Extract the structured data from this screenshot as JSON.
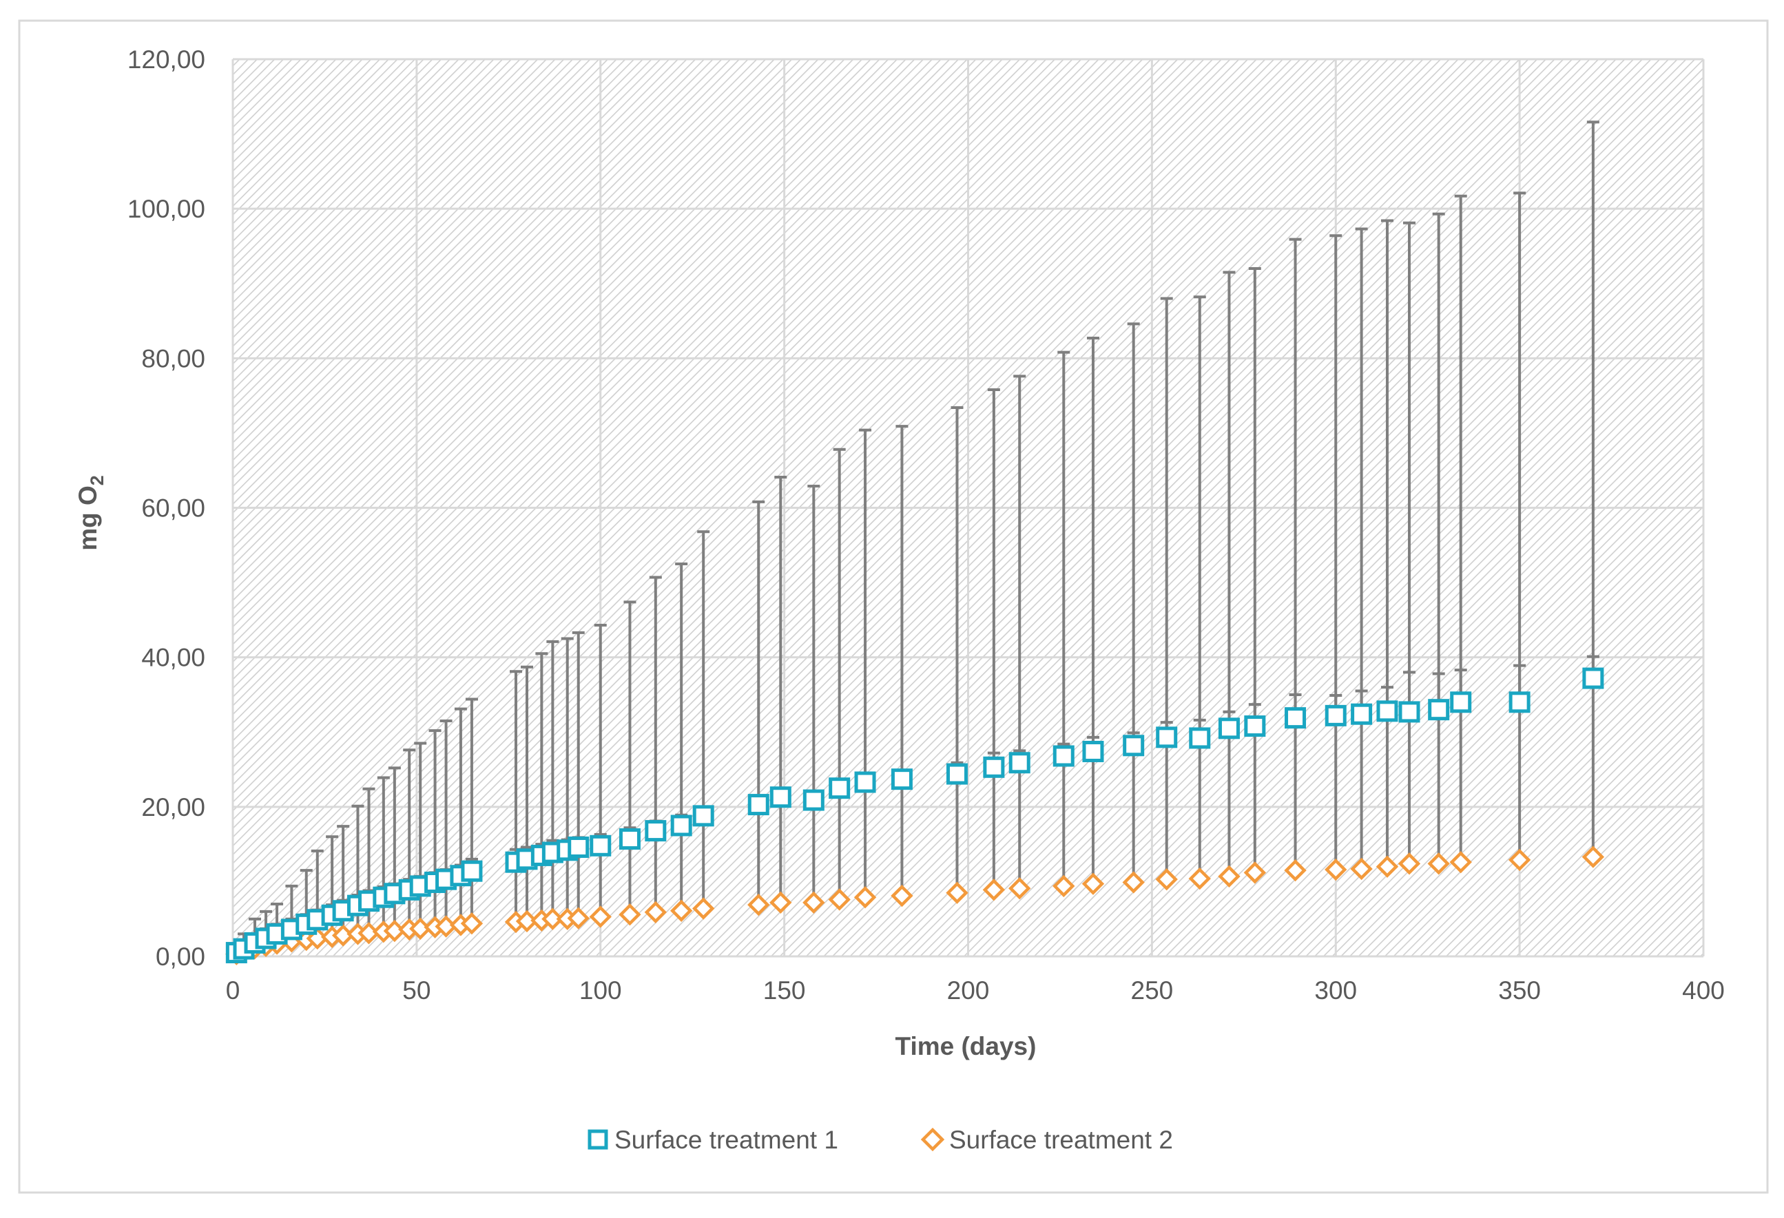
{
  "chart_data": {
    "type": "scatter",
    "title": "",
    "xlabel": "Time (days)",
    "ylabel": "mg O",
    "ylabel_subscript": "2",
    "xlim": [
      0,
      400
    ],
    "ylim": [
      0,
      120
    ],
    "xticks": [
      0,
      50,
      100,
      150,
      200,
      250,
      300,
      350,
      400
    ],
    "yticks": [
      0,
      20,
      40,
      60,
      80,
      100,
      120
    ],
    "xtick_labels": [
      "0",
      "50",
      "100",
      "150",
      "200",
      "250",
      "300",
      "350",
      "400"
    ],
    "ytick_labels": [
      "0,00",
      "20,00",
      "40,00",
      "60,00",
      "80,00",
      "100,00",
      "120,00"
    ],
    "grid": true,
    "legend_position": "bottom",
    "colors": {
      "series1": "#1AA6C2",
      "series2": "#F39A3C",
      "error_bars": "#7F7F7F",
      "grid": "#D9D9D9",
      "hatch": "#C8C8C8",
      "axis_text": "#595959"
    },
    "series": [
      {
        "name": "Surface treatment 1",
        "marker": "square",
        "x": [
          1,
          3,
          6,
          9,
          12,
          16,
          20,
          23,
          27,
          30,
          34,
          37,
          41,
          44,
          48,
          51,
          55,
          58,
          62,
          65,
          77,
          80,
          84,
          87,
          91,
          94,
          100,
          108,
          115,
          122,
          128,
          143,
          149,
          158,
          165,
          172,
          182,
          197,
          207,
          214,
          226,
          234,
          245,
          254,
          263,
          271,
          278,
          289,
          300,
          307,
          314,
          320,
          328,
          334,
          350,
          370
        ],
        "y": [
          0.5,
          1.0,
          1.8,
          2.4,
          3.0,
          3.6,
          4.3,
          4.9,
          5.5,
          6.1,
          6.8,
          7.4,
          7.9,
          8.4,
          8.9,
          9.4,
          9.9,
          10.3,
          10.8,
          11.4,
          12.6,
          13.0,
          13.5,
          13.9,
          14.2,
          14.6,
          14.8,
          15.7,
          16.8,
          17.5,
          18.8,
          20.3,
          21.3,
          20.9,
          22.5,
          23.3,
          23.7,
          24.4,
          25.3,
          25.9,
          26.8,
          27.4,
          28.2,
          29.3,
          29.2,
          30.5,
          30.8,
          31.9,
          32.2,
          32.4,
          32.8,
          32.7,
          33.0,
          34.0,
          34.0,
          37.2
        ],
        "y_err_upper": [
          1.0,
          2.0,
          3.2,
          3.6,
          4.0,
          5.8,
          7.2,
          9.2,
          10.5,
          11.3,
          13.3,
          15.0,
          16.0,
          16.8,
          18.7,
          19.1,
          20.3,
          21.2,
          22.3,
          23.0,
          25.5,
          25.7,
          27.0,
          28.2,
          28.3,
          28.7,
          29.5,
          31.7,
          33.9,
          35.0,
          38.0,
          40.5,
          42.8,
          42.0,
          45.3,
          47.1,
          47.2,
          49.0,
          50.5,
          51.7,
          54.0,
          55.3,
          56.4,
          58.7,
          59.0,
          61.0,
          61.2,
          64.0,
          64.2,
          64.9,
          65.6,
          65.4,
          66.3,
          67.7,
          68.1,
          74.4
        ],
        "y_err_lower": [
          0,
          0,
          0,
          0,
          0,
          0,
          0,
          0,
          0,
          0,
          0,
          0,
          0,
          0,
          0,
          0,
          0,
          0,
          0,
          0,
          0,
          0,
          0,
          0,
          0,
          0,
          0,
          0,
          0,
          0,
          0,
          0,
          0,
          0,
          0,
          0,
          0,
          0,
          0,
          0,
          0,
          0,
          0,
          0,
          0,
          0,
          0,
          0,
          0,
          0,
          0,
          0,
          0,
          0,
          0,
          0
        ]
      },
      {
        "name": "Surface treatment 2",
        "marker": "diamond",
        "x": [
          1,
          3,
          6,
          9,
          12,
          16,
          20,
          23,
          27,
          30,
          34,
          37,
          41,
          44,
          48,
          51,
          55,
          58,
          62,
          65,
          77,
          80,
          84,
          87,
          91,
          94,
          100,
          108,
          115,
          122,
          128,
          143,
          149,
          158,
          165,
          172,
          182,
          197,
          207,
          214,
          226,
          234,
          245,
          254,
          263,
          271,
          278,
          289,
          300,
          307,
          314,
          320,
          328,
          334,
          350,
          370
        ],
        "y": [
          0.3,
          0.7,
          1.1,
          1.4,
          1.7,
          2.0,
          2.2,
          2.4,
          2.6,
          2.8,
          3.0,
          3.1,
          3.3,
          3.4,
          3.6,
          3.7,
          3.9,
          4.0,
          4.2,
          4.4,
          4.6,
          4.7,
          4.8,
          5.0,
          5.0,
          5.1,
          5.3,
          5.6,
          5.9,
          6.1,
          6.4,
          6.9,
          7.2,
          7.2,
          7.6,
          7.9,
          8.1,
          8.5,
          8.9,
          9.1,
          9.4,
          9.7,
          9.9,
          10.3,
          10.4,
          10.7,
          11.2,
          11.5,
          11.6,
          11.7,
          12.0,
          12.4,
          12.4,
          12.6,
          12.9,
          13.3
        ],
        "y_err_upper": [
          0.6,
          1.1,
          1.9,
          2.3,
          2.6,
          3.0,
          3.4,
          3.8,
          4.3,
          4.7,
          5.2,
          5.7,
          6.0,
          6.3,
          6.7,
          7.0,
          7.3,
          7.6,
          8.0,
          8.6,
          9.7,
          9.9,
          10.2,
          10.5,
          10.6,
          10.8,
          11.0,
          11.6,
          12.2,
          12.8,
          13.2,
          13.8,
          14.5,
          14.7,
          15.5,
          16.0,
          16.5,
          17.4,
          18.3,
          18.4,
          19.0,
          19.6,
          20.0,
          21.0,
          21.2,
          22.0,
          22.5,
          23.5,
          23.3,
          23.8,
          24.0,
          25.6,
          25.4,
          25.7,
          26.0,
          26.8
        ],
        "y_err_lower": [
          0,
          0,
          0,
          0,
          0,
          0,
          0,
          0,
          0,
          0,
          0,
          0,
          0,
          0,
          0,
          0,
          0,
          0,
          0,
          0,
          0,
          0,
          0,
          0,
          0,
          0,
          0,
          0,
          0,
          0,
          0,
          0,
          0,
          0,
          0,
          0,
          0,
          0,
          0,
          0,
          0,
          0,
          0,
          0,
          0,
          0,
          0,
          0,
          0,
          0,
          0,
          0,
          0,
          0,
          0,
          0
        ]
      }
    ]
  }
}
